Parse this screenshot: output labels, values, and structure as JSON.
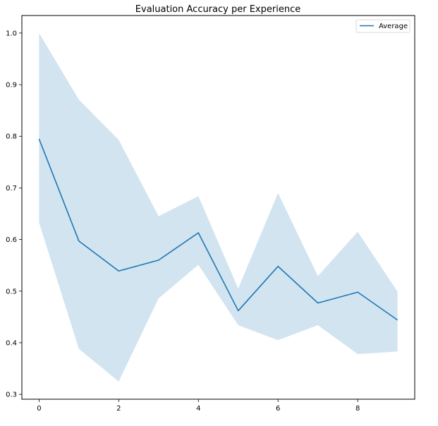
{
  "chart_data": {
    "type": "line",
    "title": "Evaluation Accuracy per Experience",
    "xlabel": "",
    "ylabel": "",
    "x": [
      0,
      1,
      2,
      3,
      4,
      5,
      6,
      7,
      8,
      9
    ],
    "series": [
      {
        "name": "Average",
        "values": [
          0.795,
          0.597,
          0.539,
          0.56,
          0.613,
          0.462,
          0.548,
          0.477,
          0.498,
          0.444
        ],
        "color": "#1f77b4"
      }
    ],
    "band": {
      "upper": [
        1.0,
        0.871,
        0.793,
        0.645,
        0.684,
        0.505,
        0.69,
        0.529,
        0.615,
        0.499
      ],
      "lower": [
        0.633,
        0.388,
        0.325,
        0.486,
        0.551,
        0.434,
        0.405,
        0.434,
        0.378,
        0.383
      ],
      "color": "#1f77b4",
      "opacity": 0.2
    },
    "xlim": [
      -0.4318,
      9.4318
    ],
    "ylim": [
      0.2906,
      1.034
    ],
    "xticks": [
      0,
      2,
      4,
      6,
      8
    ],
    "yticks": [
      0.3,
      0.4,
      0.5,
      0.6,
      0.7,
      0.8,
      0.9,
      1.0
    ],
    "xtick_labels": [
      "0",
      "2",
      "4",
      "6",
      "8"
    ],
    "ytick_labels": [
      "0.3",
      "0.4",
      "0.5",
      "0.6",
      "0.7",
      "0.8",
      "0.9",
      "1.0"
    ],
    "grid": false,
    "legend_position": "top-right"
  }
}
